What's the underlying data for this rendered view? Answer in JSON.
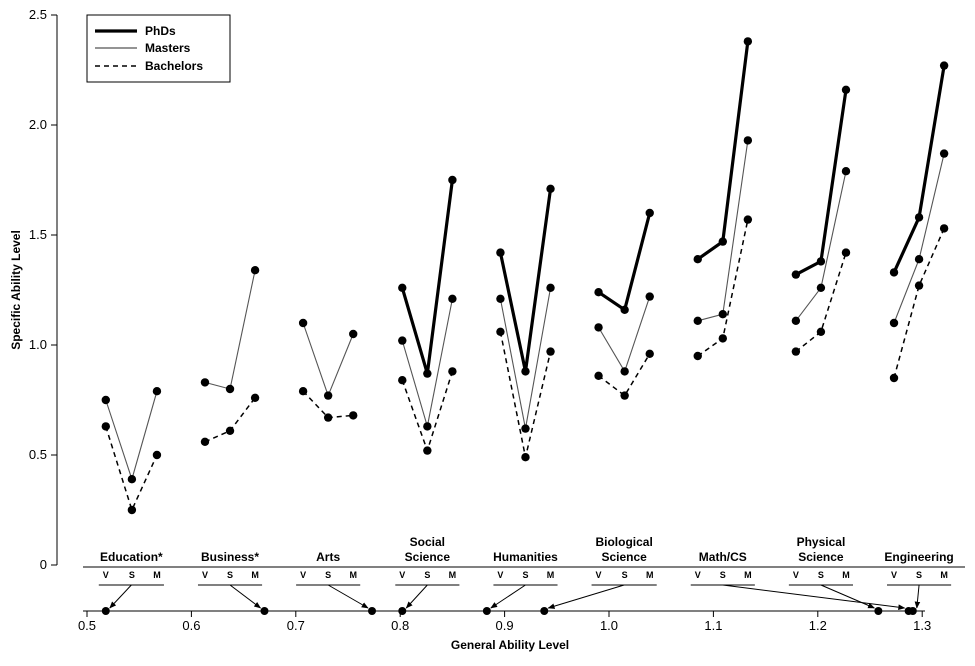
{
  "chart_data": {
    "type": "line",
    "ylabel": "Specific Ability Level",
    "xlabel": "General Ability Level",
    "ylim": [
      0,
      2.5
    ],
    "xlim": [
      0.5,
      1.3
    ],
    "y_ticks": [
      "0",
      "0.5",
      "1.0",
      "1.5",
      "2.0",
      "2.5"
    ],
    "x_ticks": [
      "0.5",
      "0.6",
      "0.7",
      "0.8",
      "0.9",
      "1.0",
      "1.1",
      "1.2",
      "1.3"
    ],
    "ability_labels": [
      "V",
      "S",
      "M"
    ],
    "legend": {
      "position": "top-left",
      "items": [
        {
          "label": "PhDs",
          "style": "thick"
        },
        {
          "label": "Masters",
          "style": "thin"
        },
        {
          "label": "Bachelors",
          "style": "dashed"
        }
      ]
    },
    "groups": [
      {
        "label": [
          "Education*"
        ],
        "general_ability": 0.518,
        "x": [
          0.518,
          0.543,
          0.567
        ],
        "series": {
          "PhDs": null,
          "Masters": [
            0.75,
            0.39,
            0.79
          ],
          "Bachelors": [
            0.63,
            0.25,
            0.5
          ]
        }
      },
      {
        "label": [
          "Business*"
        ],
        "general_ability": 0.67,
        "x": [
          0.613,
          0.637,
          0.661
        ],
        "series": {
          "PhDs": null,
          "Masters": [
            0.83,
            0.8,
            1.34
          ],
          "Bachelors": [
            0.56,
            0.61,
            0.76
          ]
        }
      },
      {
        "label": [
          "Arts"
        ],
        "general_ability": 0.773,
        "x": [
          0.707,
          0.731,
          0.755
        ],
        "series": {
          "PhDs": null,
          "Masters": [
            1.1,
            0.77,
            1.05
          ],
          "Bachelors": [
            0.79,
            0.67,
            0.68
          ]
        }
      },
      {
        "label": [
          "Social",
          "Science"
        ],
        "general_ability": 0.802,
        "x": [
          0.802,
          0.826,
          0.85
        ],
        "series": {
          "PhDs": [
            1.26,
            0.87,
            1.75
          ],
          "Masters": [
            1.02,
            0.63,
            1.21
          ],
          "Bachelors": [
            0.84,
            0.52,
            0.88
          ]
        }
      },
      {
        "label": [
          "Humanities"
        ],
        "general_ability": 0.883,
        "x": [
          0.896,
          0.92,
          0.944
        ],
        "series": {
          "PhDs": [
            1.42,
            0.88,
            1.71
          ],
          "Masters": [
            1.21,
            0.62,
            1.26
          ],
          "Bachelors": [
            1.06,
            0.49,
            0.97
          ]
        }
      },
      {
        "label": [
          "Biological",
          "Science"
        ],
        "general_ability": 0.938,
        "x": [
          0.99,
          1.015,
          1.039
        ],
        "series": {
          "PhDs": [
            1.24,
            1.16,
            1.6
          ],
          "Masters": [
            1.08,
            0.88,
            1.22
          ],
          "Bachelors": [
            0.86,
            0.77,
            0.96
          ]
        }
      },
      {
        "label": [
          "Math/CS"
        ],
        "general_ability": 1.287,
        "x": [
          1.085,
          1.109,
          1.133
        ],
        "series": {
          "PhDs": [
            1.39,
            1.47,
            2.38
          ],
          "Masters": [
            1.11,
            1.14,
            1.93
          ],
          "Bachelors": [
            0.95,
            1.03,
            1.57
          ]
        }
      },
      {
        "label": [
          "Physical",
          "Science"
        ],
        "general_ability": 1.258,
        "x": [
          1.179,
          1.203,
          1.227
        ],
        "series": {
          "PhDs": [
            1.32,
            1.38,
            2.16
          ],
          "Masters": [
            1.11,
            1.26,
            1.79
          ],
          "Bachelors": [
            0.97,
            1.06,
            1.42
          ]
        }
      },
      {
        "label": [
          "Engineering"
        ],
        "general_ability": 1.291,
        "x": [
          1.273,
          1.297,
          1.321
        ],
        "series": {
          "PhDs": [
            1.33,
            1.58,
            2.27
          ],
          "Masters": [
            1.1,
            1.39,
            1.87
          ],
          "Bachelors": [
            0.85,
            1.27,
            1.53
          ]
        }
      }
    ]
  }
}
